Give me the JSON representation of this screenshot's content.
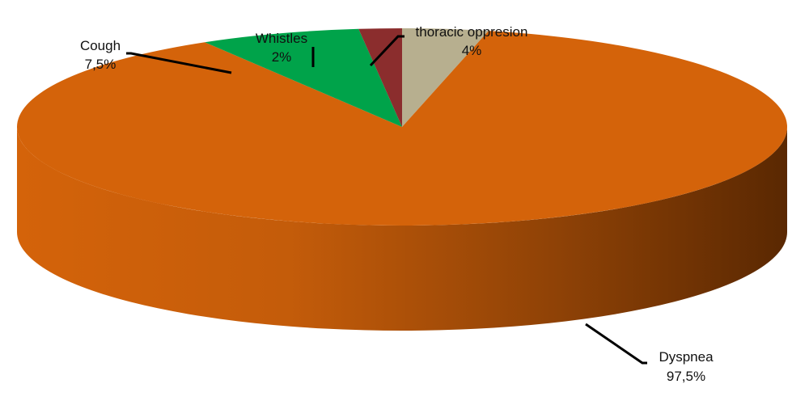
{
  "chart_data": {
    "type": "pie",
    "style": "3d-exploded-none",
    "slices": [
      {
        "label": "thoracic oppresion",
        "value_label": "4%",
        "value": 4,
        "color": "#b7af8f"
      },
      {
        "label": "Dyspnea",
        "value_label": "97,5%",
        "value": 97.5,
        "color": "#d4630a"
      },
      {
        "label": "Cough",
        "value_label": "7,5%",
        "value": 7.5,
        "color": "#00a34a"
      },
      {
        "label": "Whistles",
        "value_label": "2%",
        "value": 2,
        "color": "#8b2d2d"
      }
    ],
    "legend": "none",
    "label_placement": "outside-with-leader-lines"
  }
}
